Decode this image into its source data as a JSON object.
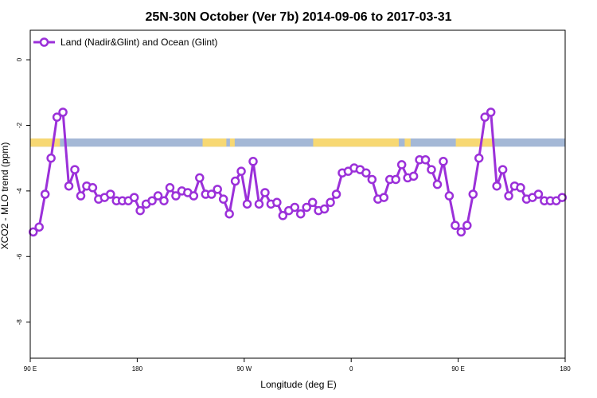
{
  "chart_data": {
    "type": "line",
    "title": "25N-30N October (Ver 7b)   2014-09-06 to 2017-03-31",
    "xlabel": "Longitude (deg E)",
    "ylabel": "XCO2 - MLO trend (ppm)",
    "x_ticks": [
      {
        "value": 90,
        "label": "90 E"
      },
      {
        "value": 180,
        "label": "180"
      },
      {
        "value": 270,
        "label": "90 W"
      },
      {
        "value": 360,
        "label": "0"
      },
      {
        "value": 450,
        "label": "90 E"
      },
      {
        "value": 540,
        "label": "180"
      }
    ],
    "y_ticks": [
      0,
      -2,
      -4,
      -6,
      -8
    ],
    "xlim": [
      90,
      540
    ],
    "ylim": [
      -9.1,
      0.9
    ],
    "grid": false,
    "legend_position": "top-left",
    "series": [
      {
        "name": "Land (Nadir&Glint) and Ocean (Glint)",
        "color": "#9b30d9",
        "x": [
          92.5,
          97.5,
          102.5,
          107.5,
          112.5,
          117.5,
          122.5,
          127.5,
          132.5,
          137.5,
          142.5,
          147.5,
          152.5,
          157.5,
          162.5,
          167.5,
          172.5,
          177.5,
          182.5,
          187.5,
          192.5,
          197.5,
          202.5,
          207.5,
          212.5,
          217.5,
          222.5,
          227.5,
          232.5,
          237.5,
          242.5,
          247.5,
          252.5,
          257.5,
          262.5,
          267.5,
          272.5,
          277.5,
          282.5,
          287.5,
          292.5,
          297.5,
          302.5,
          307.5,
          312.5,
          317.5,
          322.5,
          327.5,
          332.5,
          337.5,
          342.5,
          347.5,
          352.5,
          357.5,
          362.5,
          367.5,
          372.5,
          377.5,
          382.5,
          387.5,
          392.5,
          397.5,
          402.5,
          407.5,
          412.5,
          417.5,
          422.5,
          427.5,
          432.5,
          437.5,
          442.5,
          447.5,
          452.5,
          457.5,
          462.5,
          467.5,
          472.5,
          477.5,
          482.5,
          487.5,
          492.5,
          497.5,
          502.5,
          507.5,
          512.5,
          517.5,
          522.5,
          527.5,
          532.5,
          537.5
        ],
        "y": [
          -5.25,
          -5.1,
          -4.1,
          -3.0,
          -1.75,
          -1.6,
          -3.85,
          -3.35,
          -4.15,
          -3.85,
          -3.9,
          -4.25,
          -4.2,
          -4.1,
          -4.3,
          -4.3,
          -4.3,
          -4.2,
          -4.6,
          -4.4,
          -4.3,
          -4.15,
          -4.3,
          -3.9,
          -4.15,
          -4.0,
          -4.05,
          -4.15,
          -3.6,
          -4.1,
          -4.1,
          -3.95,
          -4.25,
          -4.7,
          -3.7,
          -3.4,
          -4.4,
          -3.1,
          -4.4,
          -4.05,
          -4.4,
          -4.35,
          -4.75,
          -4.6,
          -4.5,
          -4.7,
          -4.5,
          -4.35,
          -4.6,
          -4.55,
          -4.35,
          -4.1,
          -3.45,
          -3.4,
          -3.3,
          -3.35,
          -3.45,
          -3.65,
          -4.25,
          -4.2,
          -3.65,
          -3.65,
          -3.2,
          -3.6,
          -3.55,
          -3.05,
          -3.05,
          -3.35,
          -3.8,
          -3.1,
          -4.15,
          -5.05,
          -5.25,
          -5.05,
          -4.1,
          -3.0,
          -1.75,
          -1.6,
          -3.85,
          -3.35,
          -4.15,
          -3.85,
          -3.9,
          -4.25,
          -4.2,
          -4.1,
          -4.3,
          -4.3,
          -4.3,
          -4.2
        ]
      }
    ],
    "surface_band": {
      "y_top": -2.4,
      "y_bottom": -2.65,
      "ocean_color": "#a4b8d6",
      "land_color": "#f7d873",
      "land_segments": [
        [
          90,
          115
        ],
        [
          235,
          255
        ],
        [
          258,
          262
        ],
        [
          328,
          400
        ],
        [
          405,
          410
        ],
        [
          448,
          480
        ]
      ]
    }
  }
}
